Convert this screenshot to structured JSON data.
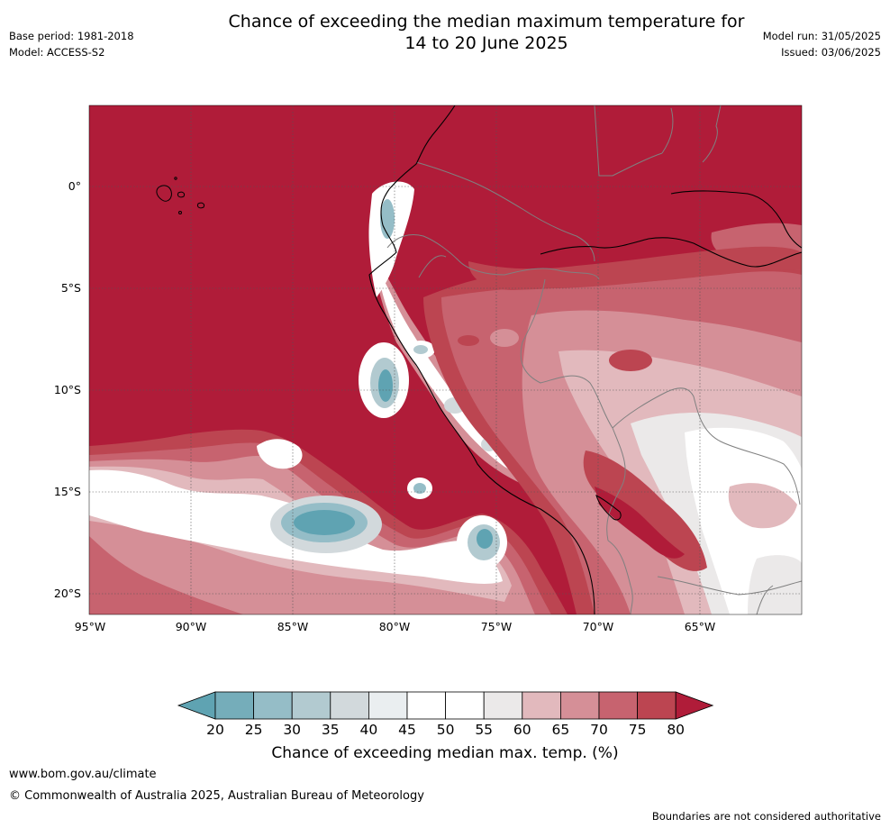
{
  "title_line1": "Chance of exceeding the median maximum temperature for",
  "title_line2": "14 to 20 June 2025",
  "base_period": "Base period: 1981-2018",
  "model": "Model: ACCESS-S2",
  "model_run": "Model run: 31/05/2025",
  "issued": "Issued: 03/06/2025",
  "lat_labels": [
    "0°",
    "5°S",
    "10°S",
    "15°S",
    "20°S"
  ],
  "lon_labels": [
    "95°W",
    "90°W",
    "85°W",
    "80°W",
    "75°W",
    "70°W",
    "65°W"
  ],
  "colorbar": {
    "ticks": [
      "20",
      "25",
      "30",
      "35",
      "40",
      "45",
      "50",
      "55",
      "60",
      "65",
      "70",
      "75",
      "80"
    ],
    "label": "Chance of exceeding median max. temp. (%)",
    "colors": [
      "#5fa3b2",
      "#75adba",
      "#95bdc7",
      "#b2cad0",
      "#d2d9dc",
      "#eaeef0",
      "#ffffff",
      "#ffffff",
      "#ebe9e9",
      "#e2b9bd",
      "#d58f97",
      "#c7636f",
      "#bc4551",
      "#b01c39"
    ]
  },
  "map_colors": {
    "deep_red": "#b01c39",
    "red": "#bc4551",
    "mid_red": "#c7636f",
    "pink": "#d58f97",
    "light_pink": "#e2b9bd",
    "off_white": "#ebe9e9",
    "white": "#ffffff",
    "light_blue": "#d2d9dc",
    "blue": "#95bdc7",
    "teal": "#5fa3b2"
  },
  "website": "www.bom.gov.au/climate",
  "copyright": "© Commonwealth of Australia 2025, Australian Bureau of Meteorology",
  "disclaimer": "Boundaries are not considered authoritative"
}
